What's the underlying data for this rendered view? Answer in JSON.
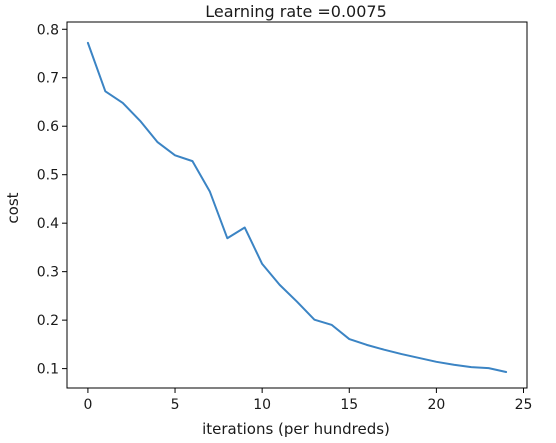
{
  "chart_data": {
    "type": "line",
    "title": "Learning rate =0.0075",
    "xlabel": "iterations (per hundreds)",
    "ylabel": "cost",
    "xlim": [
      -1.2,
      25.2
    ],
    "ylim": [
      0.06,
      0.815
    ],
    "x_ticks": [
      0,
      5,
      10,
      15,
      20,
      25
    ],
    "y_ticks": [
      0.1,
      0.2,
      0.3,
      0.4,
      0.5,
      0.6,
      0.7,
      0.8
    ],
    "grid": false,
    "series": [
      {
        "color": "#3b84c4",
        "x": [
          0,
          1,
          2,
          3,
          4,
          5,
          6,
          7,
          8,
          9,
          10,
          11,
          12,
          13,
          14,
          15,
          16,
          17,
          18,
          19,
          20,
          21,
          22,
          23,
          24
        ],
        "values": [
          0.772,
          0.672,
          0.648,
          0.611,
          0.567,
          0.54,
          0.528,
          0.465,
          0.369,
          0.391,
          0.316,
          0.273,
          0.238,
          0.201,
          0.19,
          0.161,
          0.149,
          0.139,
          0.13,
          0.122,
          0.114,
          0.108,
          0.103,
          0.101,
          0.093
        ]
      }
    ]
  }
}
